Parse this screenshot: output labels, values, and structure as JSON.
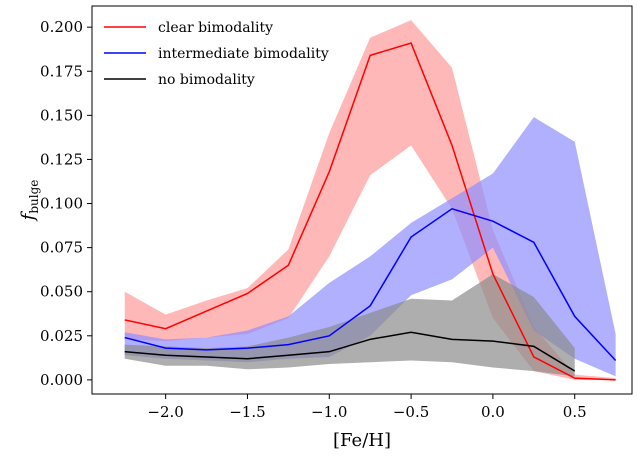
{
  "chart_data": {
    "type": "line",
    "xlabel": "[Fe/H]",
    "ylabel": "f",
    "ylabel_sub": "bulge",
    "xlim": [
      -2.45,
      0.85
    ],
    "ylim": [
      -0.008,
      0.212
    ],
    "xticks": [
      -2.0,
      -1.5,
      -1.0,
      -0.5,
      0.0,
      0.5
    ],
    "xtick_labels": [
      "−2.0",
      "−1.5",
      "−1.0",
      "−0.5",
      "0.0",
      "0.5"
    ],
    "yticks": [
      0.0,
      0.025,
      0.05,
      0.075,
      0.1,
      0.125,
      0.15,
      0.175,
      0.2
    ],
    "ytick_labels": [
      "0.000",
      "0.025",
      "0.050",
      "0.075",
      "0.100",
      "0.125",
      "0.150",
      "0.175",
      "0.200"
    ],
    "grid": false,
    "legend": "top-left",
    "series": [
      {
        "name": "clear bimodality",
        "color": "#ff0000",
        "band_color": "#ff9a9a",
        "x": [
          -2.25,
          -2.0,
          -1.75,
          -1.5,
          -1.25,
          -1.0,
          -0.75,
          -0.5,
          -0.25,
          0.0,
          0.25,
          0.5,
          0.75
        ],
        "y": [
          0.034,
          0.029,
          0.039,
          0.049,
          0.065,
          0.118,
          0.184,
          0.191,
          0.133,
          0.06,
          0.013,
          0.001,
          0.0
        ],
        "upper": [
          0.05,
          0.037,
          0.045,
          0.052,
          0.074,
          0.14,
          0.194,
          0.204,
          0.177,
          0.085,
          0.03,
          0.003,
          0.001
        ],
        "lower": [
          0.023,
          0.022,
          0.024,
          0.026,
          0.035,
          0.07,
          0.116,
          0.133,
          0.097,
          0.035,
          0.005,
          0.0,
          0.0
        ]
      },
      {
        "name": "intermediate bimodality",
        "color": "#0000ff",
        "band_color": "#8f8fff",
        "x": [
          -2.25,
          -2.0,
          -1.75,
          -1.5,
          -1.25,
          -1.0,
          -0.75,
          -0.5,
          -0.25,
          0.0,
          0.25,
          0.5,
          0.75
        ],
        "y": [
          0.024,
          0.018,
          0.017,
          0.018,
          0.02,
          0.025,
          0.042,
          0.081,
          0.097,
          0.09,
          0.078,
          0.036,
          0.011
        ],
        "upper": [
          0.027,
          0.023,
          0.024,
          0.028,
          0.036,
          0.055,
          0.07,
          0.089,
          0.103,
          0.117,
          0.149,
          0.135,
          0.026
        ],
        "lower": [
          0.014,
          0.012,
          0.011,
          0.01,
          0.012,
          0.013,
          0.025,
          0.048,
          0.057,
          0.075,
          0.028,
          0.012,
          0.002
        ]
      },
      {
        "name": "no bimodality",
        "color": "#000000",
        "band_color": "#8c8c8c",
        "x": [
          -2.25,
          -2.0,
          -1.75,
          -1.5,
          -1.25,
          -1.0,
          -0.75,
          -0.5,
          -0.25,
          0.0,
          0.25,
          0.5
        ],
        "y": [
          0.016,
          0.014,
          0.013,
          0.012,
          0.014,
          0.016,
          0.023,
          0.027,
          0.023,
          0.022,
          0.019,
          0.005
        ],
        "upper": [
          0.02,
          0.019,
          0.018,
          0.019,
          0.024,
          0.03,
          0.038,
          0.046,
          0.045,
          0.06,
          0.047,
          0.018
        ],
        "lower": [
          0.012,
          0.008,
          0.008,
          0.006,
          0.007,
          0.009,
          0.01,
          0.011,
          0.01,
          0.007,
          0.005,
          0.002
        ]
      }
    ]
  }
}
